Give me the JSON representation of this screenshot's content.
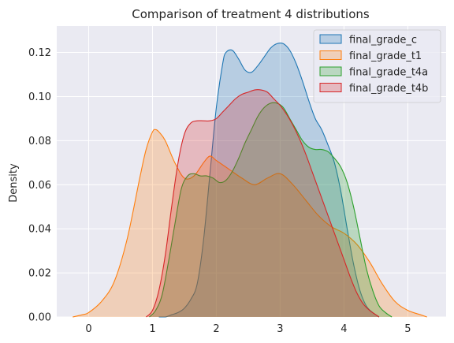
{
  "chart_data": {
    "type": "area",
    "title": "Comparison of treatment 4 distributions",
    "xlabel": "",
    "ylabel": "Density",
    "xlim": [
      -0.5,
      5.6
    ],
    "ylim": [
      0,
      0.132
    ],
    "xticks": [
      "0",
      "1",
      "2",
      "3",
      "4",
      "5"
    ],
    "yticks": [
      "0.00",
      "0.02",
      "0.04",
      "0.06",
      "0.08",
      "0.10",
      "0.12"
    ],
    "grid": true,
    "legend_position": "top-right",
    "series": [
      {
        "name": "final_grade_c",
        "color": "#1f77b4",
        "points": [
          [
            1.1,
            0.0
          ],
          [
            1.2,
            0.0
          ],
          [
            1.3,
            0.001
          ],
          [
            1.4,
            0.002
          ],
          [
            1.5,
            0.004
          ],
          [
            1.6,
            0.008
          ],
          [
            1.7,
            0.015
          ],
          [
            1.8,
            0.035
          ],
          [
            1.9,
            0.065
          ],
          [
            2.0,
            0.095
          ],
          [
            2.1,
            0.115
          ],
          [
            2.15,
            0.12
          ],
          [
            2.25,
            0.121
          ],
          [
            2.35,
            0.117
          ],
          [
            2.45,
            0.112
          ],
          [
            2.55,
            0.111
          ],
          [
            2.65,
            0.114
          ],
          [
            2.75,
            0.118
          ],
          [
            2.85,
            0.122
          ],
          [
            2.95,
            0.124
          ],
          [
            3.05,
            0.124
          ],
          [
            3.15,
            0.121
          ],
          [
            3.25,
            0.115
          ],
          [
            3.35,
            0.107
          ],
          [
            3.45,
            0.098
          ],
          [
            3.55,
            0.09
          ],
          [
            3.65,
            0.085
          ],
          [
            3.75,
            0.078
          ],
          [
            3.85,
            0.07
          ],
          [
            3.95,
            0.057
          ],
          [
            4.05,
            0.04
          ],
          [
            4.15,
            0.024
          ],
          [
            4.25,
            0.012
          ],
          [
            4.35,
            0.005
          ],
          [
            4.45,
            0.002
          ],
          [
            4.55,
            0.0
          ]
        ]
      },
      {
        "name": "final_grade_t1",
        "color": "#ff7f0e",
        "points": [
          [
            -0.25,
            0.0
          ],
          [
            -0.1,
            0.001
          ],
          [
            0.0,
            0.002
          ],
          [
            0.2,
            0.007
          ],
          [
            0.4,
            0.016
          ],
          [
            0.6,
            0.035
          ],
          [
            0.8,
            0.063
          ],
          [
            0.9,
            0.076
          ],
          [
            1.0,
            0.084
          ],
          [
            1.05,
            0.085
          ],
          [
            1.1,
            0.084
          ],
          [
            1.2,
            0.08
          ],
          [
            1.35,
            0.07
          ],
          [
            1.5,
            0.063
          ],
          [
            1.65,
            0.064
          ],
          [
            1.8,
            0.07
          ],
          [
            1.9,
            0.073
          ],
          [
            2.0,
            0.071
          ],
          [
            2.2,
            0.067
          ],
          [
            2.4,
            0.063
          ],
          [
            2.6,
            0.06
          ],
          [
            2.8,
            0.063
          ],
          [
            3.0,
            0.065
          ],
          [
            3.2,
            0.06
          ],
          [
            3.4,
            0.053
          ],
          [
            3.6,
            0.046
          ],
          [
            3.8,
            0.041
          ],
          [
            4.0,
            0.038
          ],
          [
            4.2,
            0.033
          ],
          [
            4.4,
            0.025
          ],
          [
            4.6,
            0.015
          ],
          [
            4.8,
            0.007
          ],
          [
            5.0,
            0.003
          ],
          [
            5.2,
            0.001
          ],
          [
            5.3,
            0.0
          ]
        ]
      },
      {
        "name": "final_grade_t4a",
        "color": "#2ca02c",
        "points": [
          [
            0.95,
            0.0
          ],
          [
            1.05,
            0.003
          ],
          [
            1.15,
            0.01
          ],
          [
            1.25,
            0.025
          ],
          [
            1.35,
            0.042
          ],
          [
            1.45,
            0.058
          ],
          [
            1.55,
            0.064
          ],
          [
            1.65,
            0.065
          ],
          [
            1.75,
            0.064
          ],
          [
            1.85,
            0.064
          ],
          [
            1.95,
            0.063
          ],
          [
            2.05,
            0.061
          ],
          [
            2.15,
            0.062
          ],
          [
            2.25,
            0.066
          ],
          [
            2.35,
            0.072
          ],
          [
            2.45,
            0.079
          ],
          [
            2.55,
            0.085
          ],
          [
            2.65,
            0.091
          ],
          [
            2.75,
            0.095
          ],
          [
            2.85,
            0.097
          ],
          [
            2.95,
            0.097
          ],
          [
            3.05,
            0.095
          ],
          [
            3.15,
            0.09
          ],
          [
            3.25,
            0.085
          ],
          [
            3.35,
            0.08
          ],
          [
            3.45,
            0.077
          ],
          [
            3.55,
            0.076
          ],
          [
            3.65,
            0.076
          ],
          [
            3.75,
            0.075
          ],
          [
            3.85,
            0.072
          ],
          [
            3.95,
            0.068
          ],
          [
            4.05,
            0.061
          ],
          [
            4.15,
            0.05
          ],
          [
            4.25,
            0.036
          ],
          [
            4.35,
            0.022
          ],
          [
            4.45,
            0.012
          ],
          [
            4.55,
            0.005
          ],
          [
            4.65,
            0.002
          ],
          [
            4.75,
            0.0
          ]
        ]
      },
      {
        "name": "final_grade_t4b",
        "color": "#d62728",
        "points": [
          [
            0.9,
            0.0
          ],
          [
            1.0,
            0.003
          ],
          [
            1.1,
            0.012
          ],
          [
            1.2,
            0.028
          ],
          [
            1.3,
            0.05
          ],
          [
            1.4,
            0.07
          ],
          [
            1.5,
            0.083
          ],
          [
            1.6,
            0.088
          ],
          [
            1.7,
            0.089
          ],
          [
            1.8,
            0.089
          ],
          [
            1.9,
            0.089
          ],
          [
            2.0,
            0.09
          ],
          [
            2.1,
            0.093
          ],
          [
            2.2,
            0.096
          ],
          [
            2.3,
            0.099
          ],
          [
            2.4,
            0.101
          ],
          [
            2.5,
            0.102
          ],
          [
            2.6,
            0.103
          ],
          [
            2.7,
            0.103
          ],
          [
            2.8,
            0.102
          ],
          [
            2.9,
            0.099
          ],
          [
            3.0,
            0.096
          ],
          [
            3.1,
            0.092
          ],
          [
            3.2,
            0.087
          ],
          [
            3.3,
            0.081
          ],
          [
            3.4,
            0.074
          ],
          [
            3.5,
            0.066
          ],
          [
            3.6,
            0.058
          ],
          [
            3.7,
            0.05
          ],
          [
            3.8,
            0.042
          ],
          [
            3.9,
            0.034
          ],
          [
            4.0,
            0.026
          ],
          [
            4.1,
            0.018
          ],
          [
            4.2,
            0.011
          ],
          [
            4.3,
            0.006
          ],
          [
            4.4,
            0.003
          ],
          [
            4.5,
            0.001
          ],
          [
            4.55,
            0.0
          ]
        ]
      }
    ]
  }
}
